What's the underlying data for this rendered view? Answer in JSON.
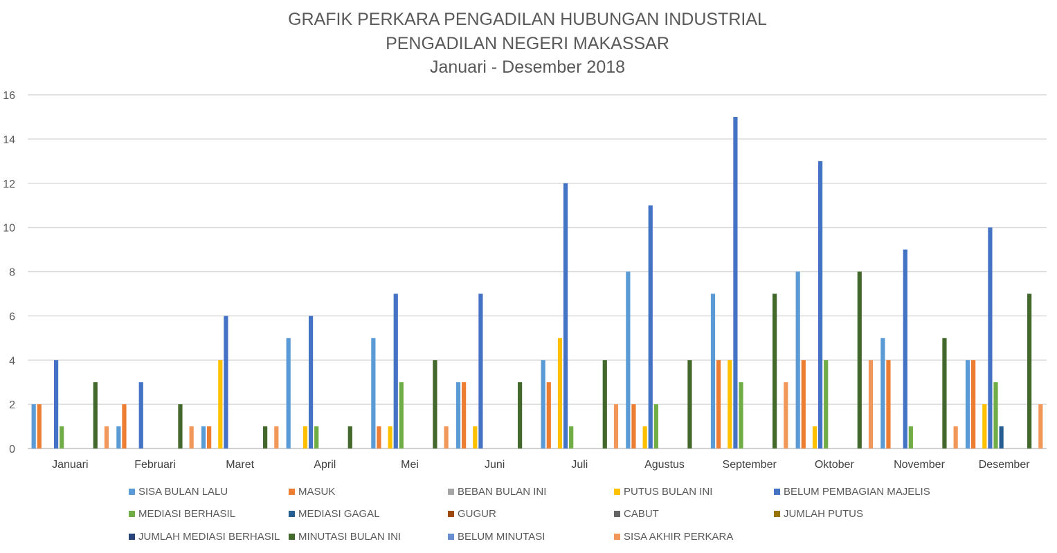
{
  "chart_data": {
    "type": "bar",
    "title_lines": [
      "GRAFIK PERKARA PENGADILAN HUBUNGAN INDUSTRIAL",
      "PENGADILAN NEGERI MAKASSAR",
      "Januari - Desember 2018"
    ],
    "xlabel": "",
    "ylabel": "",
    "ylim": [
      0,
      16
    ],
    "yticks": [
      0,
      2,
      4,
      6,
      8,
      10,
      12,
      14,
      16
    ],
    "grid": true,
    "legend_position": "bottom",
    "categories": [
      "Januari",
      "Februari",
      "Maret",
      "April",
      "Mei",
      "Juni",
      "Juli",
      "Agustus",
      "September",
      "Oktober",
      "November",
      "Desember"
    ],
    "series": [
      {
        "name": "SISA BULAN LALU",
        "color": "#5B9BD5",
        "values": [
          2,
          1,
          1,
          5,
          5,
          3,
          4,
          8,
          7,
          8,
          5,
          4
        ]
      },
      {
        "name": "MASUK",
        "color": "#ED7D31",
        "values": [
          2,
          2,
          1,
          0,
          1,
          3,
          3,
          2,
          4,
          4,
          4,
          4
        ]
      },
      {
        "name": "BEBAN BULAN INI",
        "color": "#A5A5A5",
        "values": [
          0,
          0,
          0,
          0,
          0,
          0,
          0,
          0,
          0,
          0,
          0,
          0
        ]
      },
      {
        "name": "PUTUS BULAN INI",
        "color": "#FFC000",
        "values": [
          0,
          0,
          4,
          1,
          1,
          1,
          5,
          1,
          4,
          1,
          0,
          2
        ]
      },
      {
        "name": "BELUM PEMBAGIAN MAJELIS",
        "color": "#4472C4",
        "values": [
          4,
          3,
          6,
          6,
          7,
          7,
          12,
          11,
          15,
          13,
          9,
          10
        ]
      },
      {
        "name": "MEDIASI BERHASIL",
        "color": "#70AD47",
        "values": [
          1,
          0,
          0,
          1,
          3,
          0,
          1,
          2,
          3,
          4,
          1,
          3
        ]
      },
      {
        "name": "MEDIASI GAGAL",
        "color": "#255E91",
        "values": [
          0,
          0,
          0,
          0,
          0,
          0,
          0,
          0,
          0,
          0,
          0,
          1
        ]
      },
      {
        "name": "GUGUR",
        "color": "#9E480E",
        "values": [
          0,
          0,
          0,
          0,
          0,
          0,
          0,
          0,
          0,
          0,
          0,
          0
        ]
      },
      {
        "name": "CABUT",
        "color": "#636363",
        "values": [
          0,
          0,
          0,
          0,
          0,
          0,
          0,
          0,
          0,
          0,
          0,
          0
        ]
      },
      {
        "name": "JUMLAH PUTUS",
        "color": "#997300",
        "values": [
          0,
          0,
          0,
          0,
          0,
          0,
          0,
          0,
          0,
          0,
          0,
          0
        ]
      },
      {
        "name": "JUMLAH MEDIASI BERHASIL",
        "color": "#264478",
        "values": [
          0,
          0,
          0,
          0,
          0,
          0,
          0,
          0,
          0,
          0,
          0,
          0
        ]
      },
      {
        "name": "MINUTASI BULAN INI",
        "color": "#43682B",
        "values": [
          3,
          2,
          1,
          1,
          4,
          3,
          4,
          4,
          7,
          8,
          5,
          7
        ]
      },
      {
        "name": "BELUM MINUTASI",
        "color": "#698ED0",
        "values": [
          0,
          0,
          0,
          0,
          0,
          0,
          0,
          0,
          0,
          0,
          0,
          0
        ]
      },
      {
        "name": "SISA AKHIR PERKARA",
        "color": "#F1975A",
        "values": [
          1,
          1,
          1,
          0,
          1,
          0,
          2,
          0,
          3,
          4,
          1,
          2
        ]
      }
    ]
  }
}
